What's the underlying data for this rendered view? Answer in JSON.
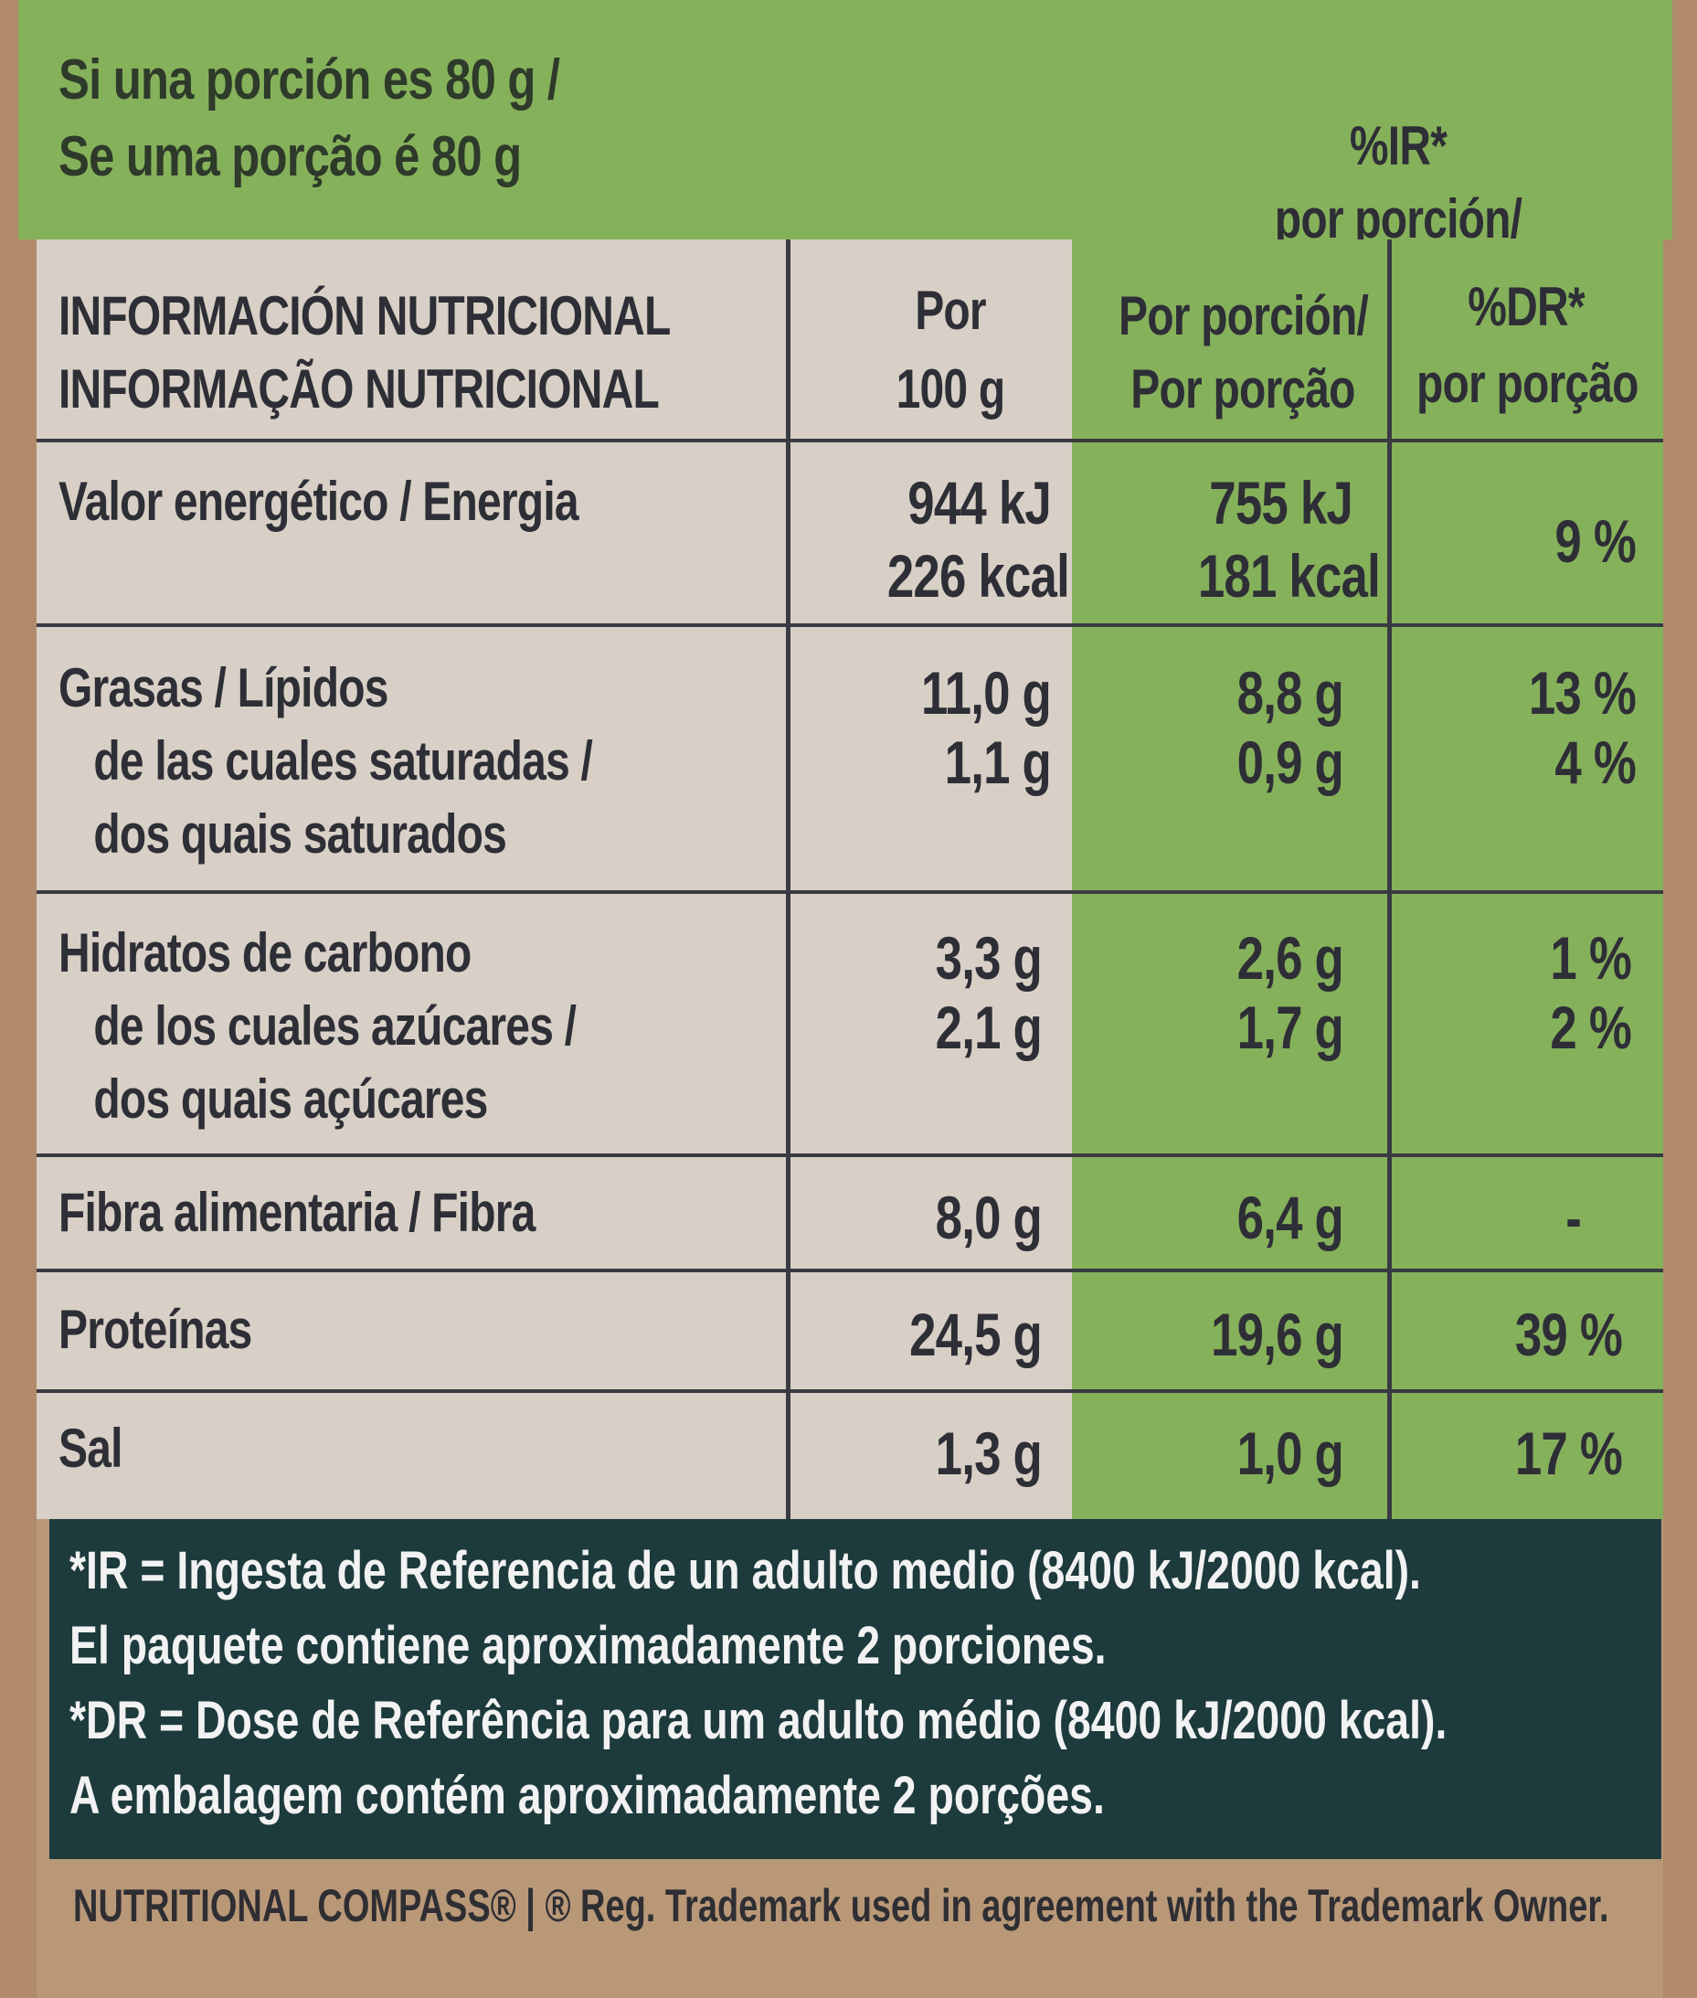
{
  "serving": {
    "line1": "Si una porción es 80 g /",
    "line2": "Se uma porção é 80 g"
  },
  "header": {
    "col1_line1": "INFORMACIÓN NUTRICIONAL",
    "col1_line2": "INFORMAÇÃO NUTRICIONAL",
    "col2_line1": "Por",
    "col2_line2": "100 g",
    "col3_line1": "Por porción/",
    "col3_line2": "Por porção",
    "col4_line1": "%IR*",
    "col4_line2": "por porción/",
    "col4_line3": "%DR*",
    "col4_line4": "por porção"
  },
  "rows": {
    "energy": {
      "label": "Valor energético / Energia",
      "per100_kj": "944 kJ",
      "per100_kcal": "226 kcal",
      "portion_kj": "755 kJ",
      "portion_kcal": "181 kcal",
      "ri": "9 %"
    },
    "fat": {
      "label": "Grasas / Lípidos",
      "per100": "11,0 g",
      "portion": "8,8 g",
      "ri": "13 %"
    },
    "saturates": {
      "label1": "de las cuales saturadas /",
      "label2": "dos quais saturados",
      "per100": "1,1 g",
      "portion": "0,9 g",
      "ri": "4 %"
    },
    "carbs": {
      "label": "Hidratos de carbono",
      "per100": "3,3 g",
      "portion": "2,6 g",
      "ri": "1 %"
    },
    "sugars": {
      "label1": "de los cuales azúcares /",
      "label2": "dos quais açúcares",
      "per100": "2,1 g",
      "portion": "1,7 g",
      "ri": "2 %"
    },
    "fibre": {
      "label": "Fibra alimentaria / Fibra",
      "per100": "8,0 g",
      "portion": "6,4 g",
      "ri": "-"
    },
    "protein": {
      "label": "Proteínas",
      "per100": "24,5 g",
      "portion": "19,6 g",
      "ri": "39 %"
    },
    "salt": {
      "label": "Sal",
      "per100": "1,3 g",
      "portion": "1,0 g",
      "ri": "17 %"
    }
  },
  "footnote": {
    "line1": "*IR = Ingesta de Referencia de un adulto medio (8400 kJ/2000 kcal).",
    "line2": "El paquete contiene aproximadamente 2 porciones.",
    "line3": "*DR = Dose de Referência para um adulto médio (8400 kJ/2000 kcal).",
    "line4": "A embalagem contém aproximadamente 2 porções."
  },
  "trademark": "NUTRITIONAL COMPASS® | ® Reg. Trademark used in agreement with the Trademark Owner."
}
